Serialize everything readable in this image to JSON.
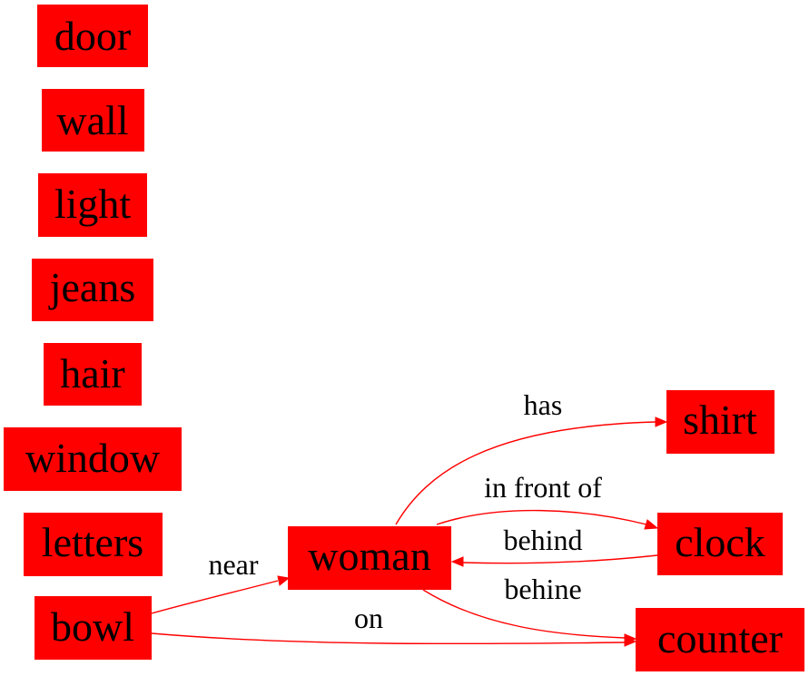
{
  "colors": {
    "node_fill": "#ff0000",
    "edge": "#ff0000",
    "text": "#000000",
    "background": "#ffffff"
  },
  "nodes": {
    "door": "door",
    "wall": "wall",
    "light": "light",
    "jeans": "jeans",
    "hair": "hair",
    "window": "window",
    "letters": "letters",
    "bowl": "bowl",
    "woman": "woman",
    "shirt": "shirt",
    "clock": "clock",
    "counter": "counter"
  },
  "edges": {
    "woman_shirt": "has",
    "woman_clock": "in front of",
    "clock_woman": "behind",
    "woman_counter": "behine",
    "bowl_woman": "near",
    "bowl_counter": "on"
  }
}
